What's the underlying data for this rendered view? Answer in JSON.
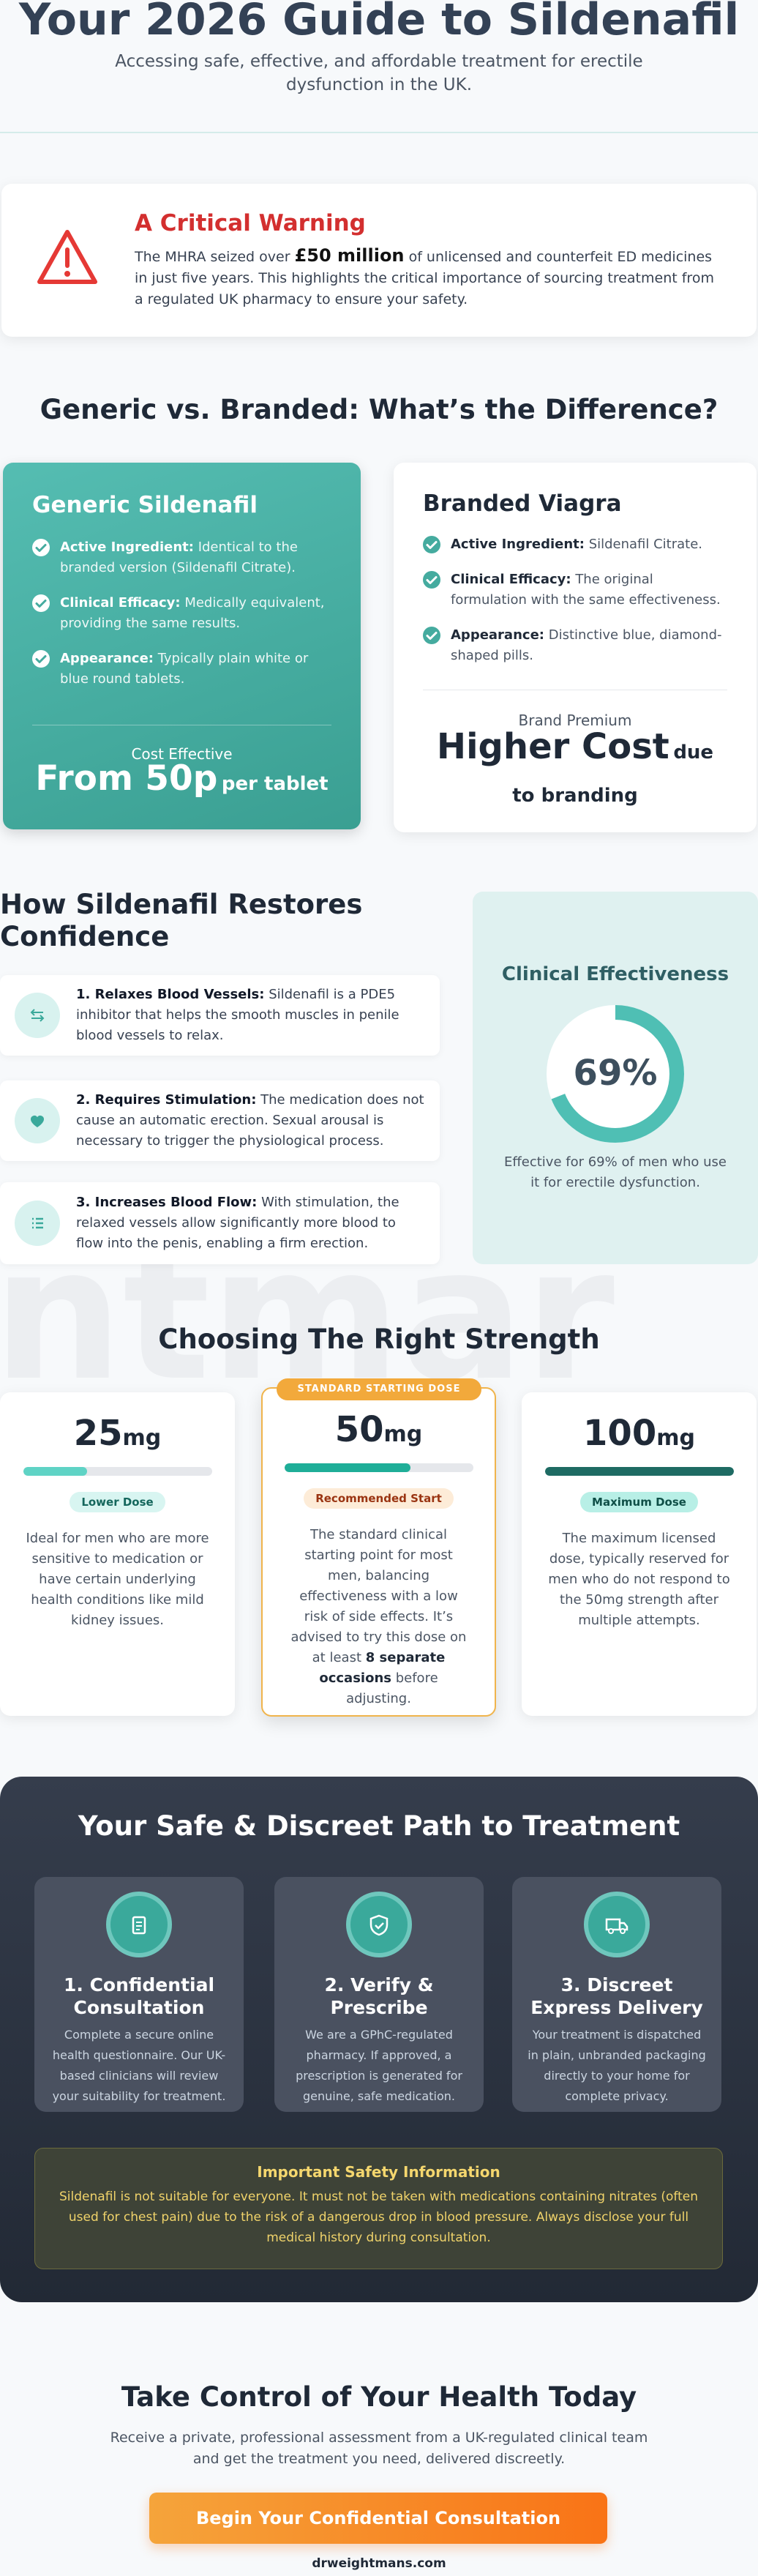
{
  "header": {
    "title": "Your 2026 Guide to Sildenafil",
    "subtitle": "Accessing safe, effective, and affordable treatment for erectile dysfunction in the UK."
  },
  "warning": {
    "title": "A Critical Warning",
    "text_before": "The MHRA seized over",
    "highlight": "£50 million",
    "text_after": "of unlicensed and counterfeit ED medicines in just five years. This highlights the critical importance of sourcing treatment from a regulated UK pharmacy to ensure your safety."
  },
  "comparison": {
    "heading": "Generic vs. Branded: What’s the Difference?",
    "generic": {
      "title": "Generic Sildenafil",
      "items": [
        {
          "label": "Active Ingredient:",
          "text": "Identical to the branded version (Sildenafil Citrate)."
        },
        {
          "label": "Clinical Efficacy:",
          "text": "Medically equivalent, providing the same results."
        },
        {
          "label": "Appearance:",
          "text": "Typically plain white or blue round tablets."
        }
      ],
      "footer_label": "Cost Effective",
      "price": "From 50p",
      "price_suffix": "per tablet"
    },
    "branded": {
      "title": "Branded Viagra",
      "items": [
        {
          "label": "Active Ingredient:",
          "text": "Sildenafil Citrate."
        },
        {
          "label": "Clinical Efficacy:",
          "text": "The original formulation with the same effectiveness."
        },
        {
          "label": "Appearance:",
          "text": "Distinctive blue, diamond-shaped pills."
        }
      ],
      "footer_label": "Brand Premium",
      "price": "Higher Cost",
      "price_suffix": "due to branding"
    }
  },
  "mechanism": {
    "heading": "How Sildenafil Restores Confidence",
    "steps": [
      {
        "label": "1. Relaxes Blood Vessels:",
        "text": "Sildenafil is a PDE5 inhibitor that helps the smooth muscles in penile blood vessels to relax."
      },
      {
        "label": "2. Requires Stimulation:",
        "text": "The medication does not cause an automatic erection. Sexual arousal is necessary to trigger the physiological process."
      },
      {
        "label": "3. Increases Blood Flow:",
        "text": "With stimulation, the relaxed vessels allow significantly more blood to flow into the penis, enabling a firm erection."
      }
    ],
    "clinical": {
      "title": "Clinical Effectiveness",
      "value": 69,
      "value_label": "69%",
      "text": "Effective for 69% of men who use it for erectile dysfunction."
    }
  },
  "watermark": "ntmar",
  "strength": {
    "heading": "Choosing The Right Strength",
    "tag": "STANDARD STARTING DOSE",
    "cards": [
      {
        "dose": "25",
        "unit": "mg",
        "badge": "Lower Dose",
        "text": "Ideal for men who are more sensitive to medication or have certain underlying health conditions like mild kidney issues."
      },
      {
        "dose": "50",
        "unit": "mg",
        "badge": "Recommended Start",
        "text": "The standard clinical starting point for most men, balancing effectiveness with a low risk of side effects. It’s advised to try this dose on at least",
        "bold": "8 separate occasions",
        "text_after": "before adjusting."
      },
      {
        "dose": "100",
        "unit": "mg",
        "badge": "Maximum Dose",
        "text": "The maximum licensed dose, typically reserved for men who do not respond to the 50mg strength after multiple attempts."
      }
    ]
  },
  "path": {
    "heading": "Your Safe & Discreet Path to Treatment",
    "steps": [
      {
        "title": "1. Confidential Consultation",
        "text": "Complete a secure online health questionnaire. Our UK-based clinicians will review your suitability for treatment."
      },
      {
        "title": "2. Verify & Prescribe",
        "text": "We are a GPhC-regulated pharmacy. If approved, a prescription is generated for genuine, safe medication."
      },
      {
        "title": "3. Discreet Express Delivery",
        "text": "Your treatment is dispatched in plain, unbranded packaging directly to your home for complete privacy."
      }
    ],
    "safety": {
      "title": "Important Safety Information",
      "text": "Sildenafil is not suitable for everyone. It must not be taken with medications containing nitrates (often used for chest pain) due to the risk of a dangerous drop in blood pressure. Always disclose your full medical history during consultation."
    }
  },
  "cta": {
    "heading": "Take Control of Your Health Today",
    "text": "Receive a private, professional assessment from a UK-regulated clinical team and get the treatment you need, delivered discreetly.",
    "button": "Begin Your Confidential Consultation",
    "footer": "drweightmans.com"
  }
}
